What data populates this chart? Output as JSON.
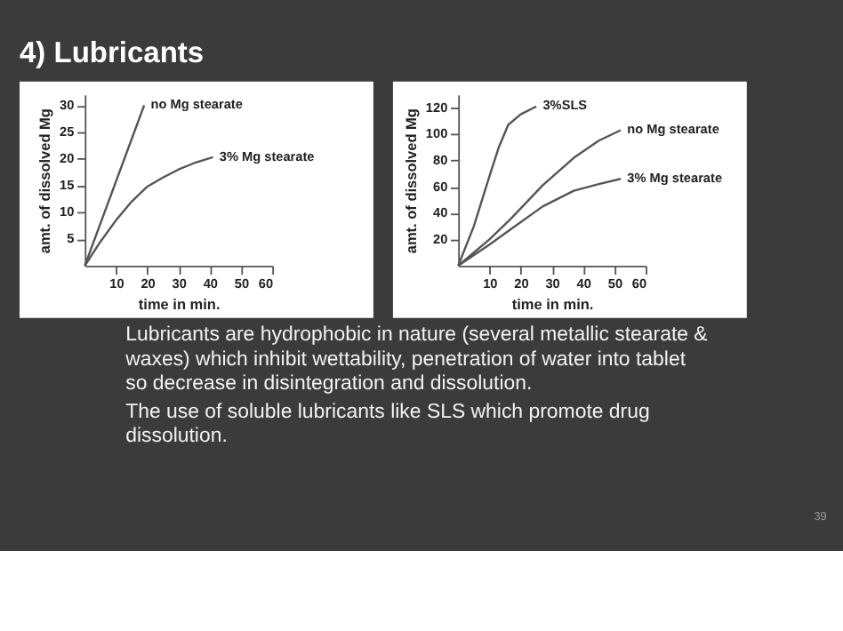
{
  "chart_data": [
    {
      "type": "line",
      "title": "4) Lubricants",
      "xlabel": "time in min.",
      "ylabel": "amt. of dissolved Mg",
      "xlim": [
        0,
        60
      ],
      "xticks": [
        10,
        20,
        30,
        40,
        50,
        60
      ],
      "ylim": [
        0,
        32
      ],
      "yticks": [
        5,
        10,
        15,
        20,
        25,
        30
      ],
      "grid": false,
      "legend": false,
      "series": [
        {
          "name": "no Mg stearate",
          "color": "#555555",
          "x": [
            0,
            19
          ],
          "values": [
            0,
            30
          ]
        },
        {
          "name": "3% Mg stearate",
          "color": "#555555",
          "x": [
            0,
            5,
            10,
            15,
            20,
            25,
            30,
            35,
            41
          ],
          "values": [
            0,
            4.5,
            8.5,
            12,
            14.8,
            16.5,
            18,
            19.2,
            20.3
          ]
        }
      ]
    },
    {
      "type": "line",
      "xlabel": "time in min.",
      "ylabel": "amt. of dissolved Mg",
      "xlim": [
        0,
        60
      ],
      "xticks": [
        10,
        20,
        30,
        40,
        50,
        60
      ],
      "ylim": [
        0,
        130
      ],
      "yticks": [
        20,
        40,
        60,
        80,
        100,
        120
      ],
      "grid": false,
      "legend": false,
      "series": [
        {
          "name": "3%SLS",
          "color": "#555555",
          "x": [
            0,
            5,
            10,
            13,
            16,
            20,
            25
          ],
          "values": [
            0,
            30,
            68,
            90,
            107,
            115,
            121
          ]
        },
        {
          "name": "no Mg stearate",
          "color": "#555555",
          "x": [
            0,
            10,
            17,
            27,
            37,
            45,
            52
          ],
          "values": [
            0,
            20,
            36,
            61,
            82,
            95,
            103
          ]
        },
        {
          "name": "3% Mg stearate",
          "color": "#555555",
          "x": [
            0,
            10,
            17,
            27,
            37,
            45,
            52
          ],
          "values": [
            0,
            16,
            28,
            45,
            57,
            62,
            66
          ]
        }
      ],
      "annotations": [
        "Lubricants are hydrophobic in nature (several metallic stearate & waxes) which inhibit wettability, penetration of  water into tablet so decrease in disintegration and dissolution.",
        "The use of soluble lubricants like SLS which promote drug dissolution.",
        "39"
      ]
    }
  ]
}
